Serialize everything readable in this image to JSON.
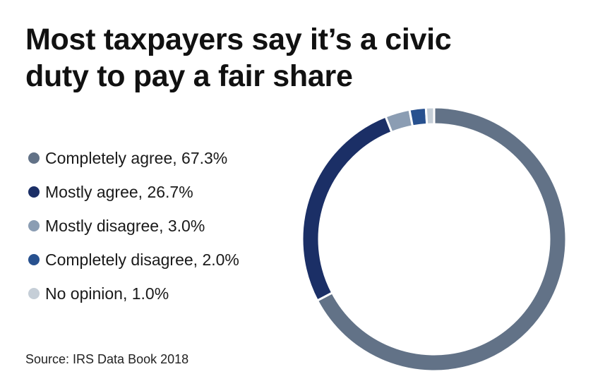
{
  "title": "Most taxpayers say it’s a civic duty to pay a fair share",
  "source": "Source: IRS Data Book 2018",
  "chart_data": {
    "type": "pie",
    "variant": "donut",
    "title": "Most taxpayers say it’s a civic duty to pay a fair share",
    "legend_placement": "left",
    "series": [
      {
        "label": "Completely agree",
        "value": 67.3,
        "legend_text": "Completely agree, 67.3%",
        "color": "#627287"
      },
      {
        "label": "Mostly agree",
        "value": 26.7,
        "legend_text": "Mostly agree, 26.7%",
        "color": "#1b2f66"
      },
      {
        "label": "Mostly disagree",
        "value": 3.0,
        "legend_text": "Mostly disagree, 3.0%",
        "color": "#8b9db3"
      },
      {
        "label": "Completely disagree",
        "value": 2.0,
        "legend_text": "Completely disagree, 2.0%",
        "color": "#28518f"
      },
      {
        "label": "No opinion",
        "value": 1.0,
        "legend_text": "No opinion, 1.0%",
        "color": "#c5ced7"
      }
    ]
  }
}
